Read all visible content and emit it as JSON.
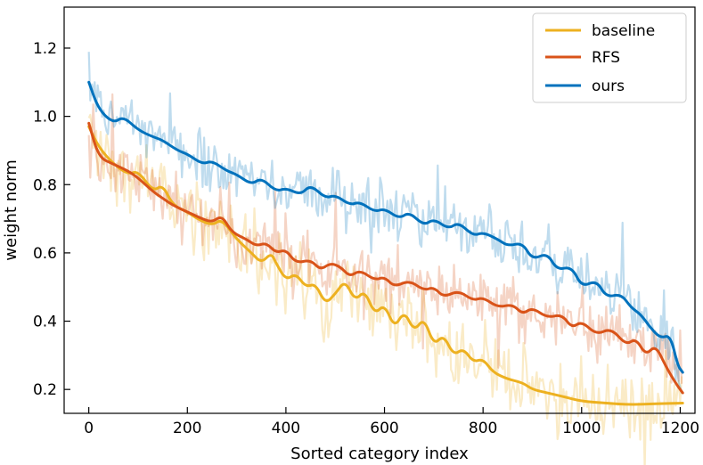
{
  "chart_data": {
    "type": "line",
    "title": "",
    "xlabel": "Sorted category index",
    "ylabel": "weight norm",
    "xlim": [
      -50,
      1230
    ],
    "ylim": [
      0.13,
      1.32
    ],
    "xticks": [
      0,
      200,
      400,
      600,
      800,
      1000,
      1200
    ],
    "yticks": [
      0.2,
      0.4,
      0.6,
      0.8,
      1.0,
      1.2
    ],
    "xtick_labels": [
      "0",
      "200",
      "400",
      "600",
      "800",
      "1000",
      "1200"
    ],
    "ytick_labels": [
      "0.2",
      "0.4",
      "0.6",
      "0.8",
      "1.0",
      "1.2"
    ],
    "grid": false,
    "legend_position": "top-right",
    "series": [
      {
        "name": "baseline",
        "color": "#EDB120",
        "smoothed": {
          "x": [
            0,
            20,
            50,
            80,
            100,
            130,
            150,
            170,
            200,
            220,
            250,
            270,
            300,
            330,
            350,
            370,
            380,
            400,
            420,
            440,
            460,
            480,
            500,
            520,
            540,
            560,
            580,
            600,
            620,
            640,
            660,
            680,
            700,
            720,
            740,
            760,
            780,
            800,
            820,
            850,
            880,
            900,
            930,
            960,
            1000,
            1050,
            1100,
            1150,
            1205
          ],
          "y": [
            0.97,
            0.91,
            0.86,
            0.83,
            0.84,
            0.78,
            0.8,
            0.74,
            0.72,
            0.7,
            0.68,
            0.7,
            0.64,
            0.6,
            0.57,
            0.6,
            0.57,
            0.52,
            0.54,
            0.5,
            0.51,
            0.45,
            0.48,
            0.52,
            0.46,
            0.49,
            0.42,
            0.45,
            0.38,
            0.43,
            0.37,
            0.41,
            0.33,
            0.36,
            0.3,
            0.32,
            0.28,
            0.29,
            0.25,
            0.23,
            0.22,
            0.2,
            0.19,
            0.18,
            0.165,
            0.16,
            0.155,
            0.158,
            0.16
          ]
        }
      },
      {
        "name": "RFS",
        "color": "#D95319",
        "smoothed": {
          "x": [
            0,
            20,
            50,
            80,
            100,
            130,
            150,
            170,
            200,
            230,
            250,
            270,
            290,
            320,
            340,
            360,
            380,
            400,
            420,
            450,
            470,
            490,
            510,
            530,
            550,
            580,
            600,
            620,
            650,
            680,
            700,
            720,
            750,
            780,
            800,
            830,
            860,
            880,
            900,
            930,
            960,
            980,
            1000,
            1030,
            1060,
            1090,
            1110,
            1130,
            1150,
            1170,
            1190,
            1205
          ],
          "y": [
            0.98,
            0.88,
            0.86,
            0.84,
            0.82,
            0.78,
            0.76,
            0.74,
            0.72,
            0.7,
            0.69,
            0.71,
            0.66,
            0.64,
            0.62,
            0.63,
            0.6,
            0.61,
            0.57,
            0.58,
            0.55,
            0.57,
            0.56,
            0.53,
            0.55,
            0.52,
            0.53,
            0.5,
            0.52,
            0.49,
            0.5,
            0.47,
            0.49,
            0.46,
            0.47,
            0.44,
            0.45,
            0.42,
            0.44,
            0.41,
            0.42,
            0.38,
            0.4,
            0.36,
            0.38,
            0.33,
            0.35,
            0.3,
            0.33,
            0.27,
            0.22,
            0.19
          ]
        }
      },
      {
        "name": "ours",
        "color": "#0072BD",
        "smoothed": {
          "x": [
            0,
            20,
            50,
            70,
            100,
            130,
            150,
            180,
            200,
            230,
            250,
            280,
            300,
            330,
            350,
            380,
            400,
            430,
            450,
            480,
            500,
            530,
            550,
            580,
            600,
            630,
            650,
            680,
            700,
            730,
            750,
            780,
            800,
            830,
            850,
            880,
            900,
            930,
            950,
            980,
            1000,
            1030,
            1050,
            1080,
            1100,
            1120,
            1140,
            1160,
            1180,
            1195,
            1205
          ],
          "y": [
            1.1,
            1.02,
            0.98,
            1.0,
            0.96,
            0.94,
            0.93,
            0.9,
            0.89,
            0.86,
            0.87,
            0.84,
            0.83,
            0.8,
            0.82,
            0.78,
            0.79,
            0.77,
            0.8,
            0.76,
            0.77,
            0.74,
            0.75,
            0.72,
            0.73,
            0.7,
            0.72,
            0.68,
            0.7,
            0.67,
            0.69,
            0.65,
            0.66,
            0.64,
            0.62,
            0.63,
            0.58,
            0.6,
            0.55,
            0.56,
            0.5,
            0.52,
            0.47,
            0.48,
            0.44,
            0.42,
            0.38,
            0.35,
            0.36,
            0.27,
            0.25
          ]
        }
      }
    ],
    "band_alpha": 0.25
  }
}
